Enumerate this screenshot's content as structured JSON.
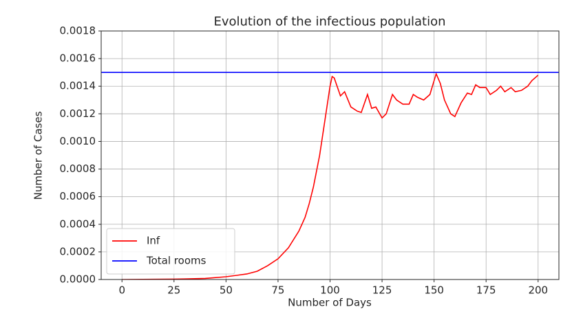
{
  "chart_data": {
    "type": "line",
    "title": "Evolution of the infectious population",
    "xlabel": "Number of Days",
    "ylabel": "Number of Cases",
    "xlim": [
      -10,
      210
    ],
    "ylim": [
      0,
      0.0018
    ],
    "xticks": [
      0,
      25,
      50,
      75,
      100,
      125,
      150,
      175,
      200
    ],
    "yticks": [
      {
        "value": 0,
        "label": "0.0000"
      },
      {
        "value": 0.0002,
        "label": "0.0002"
      },
      {
        "value": 0.0004,
        "label": "0.0004"
      },
      {
        "value": 0.0006,
        "label": "0.0006"
      },
      {
        "value": 0.0008,
        "label": "0.0008"
      },
      {
        "value": 0.001,
        "label": "0.0010"
      },
      {
        "value": 0.0012,
        "label": "0.0012"
      },
      {
        "value": 0.0014,
        "label": "0.0014"
      },
      {
        "value": 0.0016,
        "label": "0.0016"
      },
      {
        "value": 0.0018,
        "label": "0.0018"
      }
    ],
    "grid": true,
    "legend": "lower left",
    "series": [
      {
        "name": "Inf",
        "color": "#ff0000",
        "x": [
          0,
          10,
          20,
          30,
          40,
          50,
          55,
          60,
          65,
          70,
          75,
          80,
          85,
          88,
          90,
          92,
          95,
          98,
          100,
          101,
          102,
          105,
          107,
          110,
          113,
          115,
          118,
          120,
          122,
          125,
          127,
          130,
          132,
          135,
          138,
          140,
          142,
          145,
          148,
          151,
          153,
          155,
          158,
          160,
          163,
          166,
          168,
          170,
          172,
          175,
          177,
          180,
          182,
          184,
          187,
          189,
          192,
          195,
          197,
          200
        ],
        "values": [
          0,
          1e-06,
          2e-06,
          4e-06,
          8e-06,
          2e-05,
          3e-05,
          4e-05,
          6e-05,
          0.0001,
          0.00015,
          0.00023,
          0.00035,
          0.00045,
          0.00055,
          0.00067,
          0.0009,
          0.0012,
          0.0014,
          0.00147,
          0.00146,
          0.00133,
          0.00136,
          0.00125,
          0.00122,
          0.00121,
          0.00134,
          0.00124,
          0.00125,
          0.00117,
          0.0012,
          0.00134,
          0.0013,
          0.00127,
          0.00127,
          0.00134,
          0.00132,
          0.0013,
          0.00134,
          0.00149,
          0.00142,
          0.0013,
          0.0012,
          0.00118,
          0.00128,
          0.00135,
          0.00134,
          0.00141,
          0.00139,
          0.00139,
          0.00134,
          0.00137,
          0.0014,
          0.00136,
          0.00139,
          0.00136,
          0.00137,
          0.0014,
          0.00144,
          0.00148
        ]
      },
      {
        "name": "Total rooms",
        "color": "#0000ff",
        "x": [
          -10,
          210
        ],
        "values": [
          0.0015,
          0.0015
        ]
      }
    ]
  }
}
